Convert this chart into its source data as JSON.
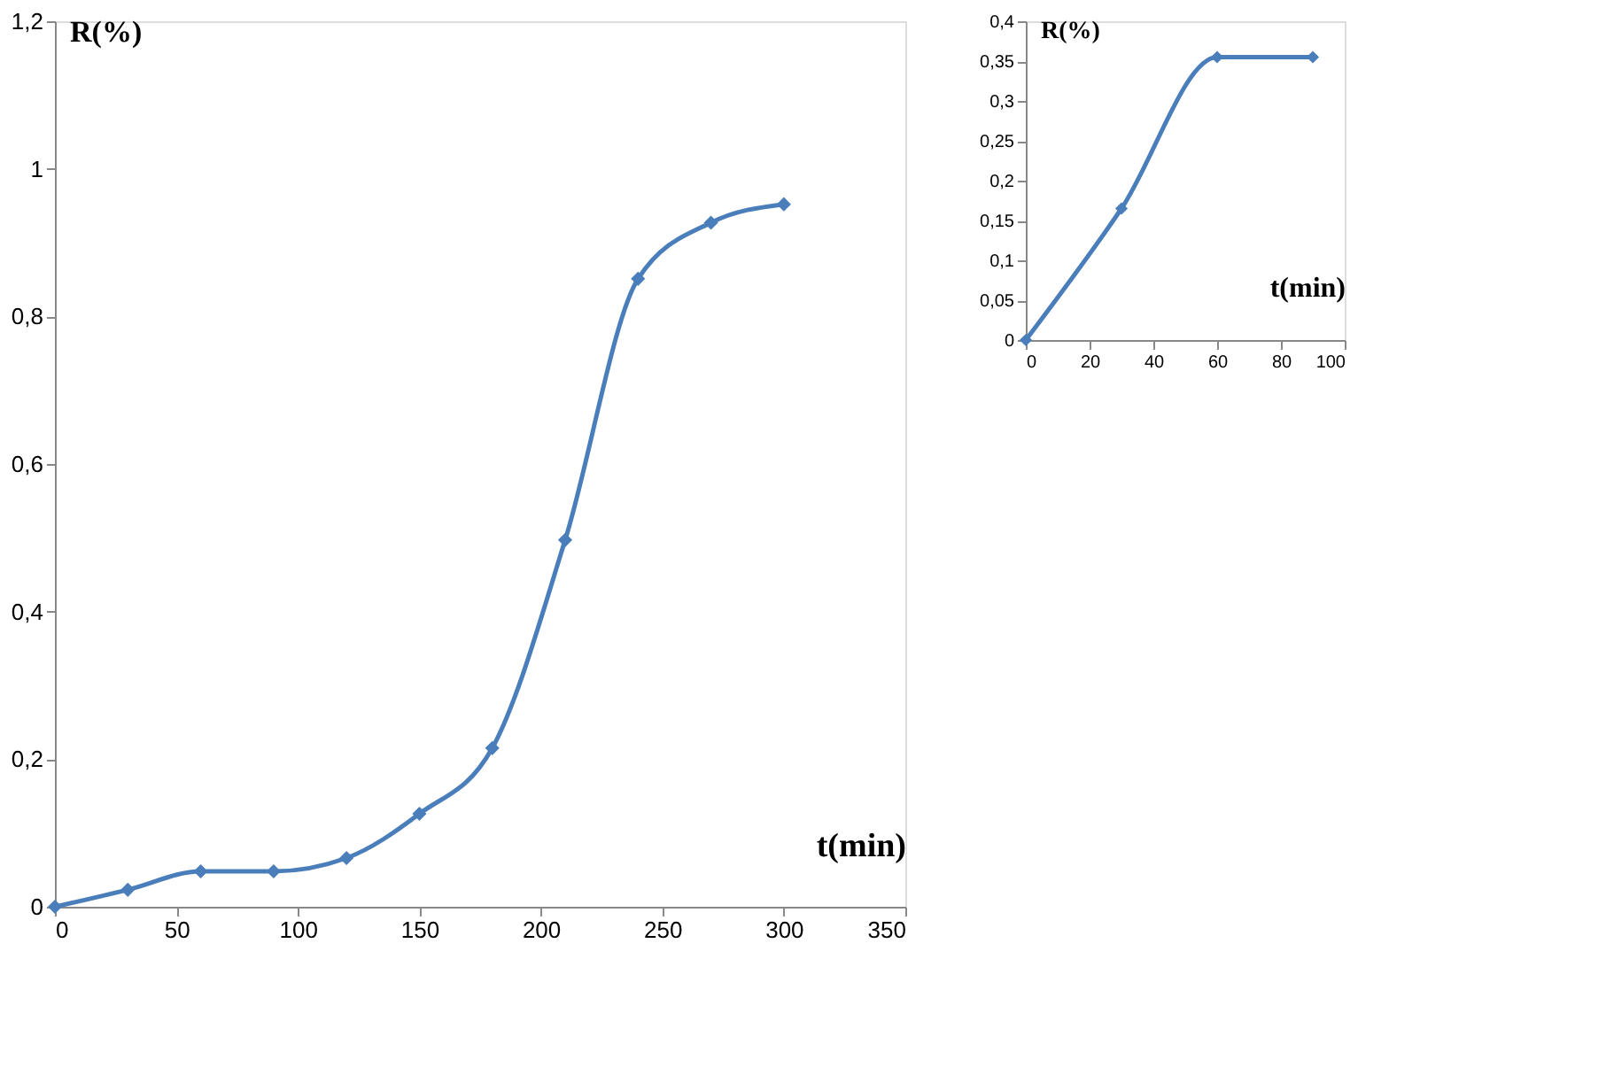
{
  "chart_data": [
    {
      "type": "line",
      "xlabel": "t(min)",
      "ylabel": "R(%)",
      "x": [
        0,
        30,
        60,
        90,
        120,
        150,
        180,
        210,
        240,
        270,
        300
      ],
      "series": [
        {
          "color": "#4a7ebb",
          "values": [
            0,
            0.023,
            0.048,
            0.048,
            0.066,
            0.126,
            0.215,
            0.497,
            0.851,
            0.927,
            0.952
          ]
        }
      ],
      "xlim": [
        0,
        350
      ],
      "xticks": [
        0,
        50,
        100,
        150,
        200,
        250,
        300,
        350
      ],
      "ylim": [
        0,
        1.2
      ],
      "yticks": [
        0,
        {
          "value": 0.2,
          "label": "0,2"
        },
        {
          "value": 0.4,
          "label": "0,4"
        },
        {
          "value": 0.6,
          "label": "0,6"
        },
        {
          "value": 0.8,
          "label": "0,8"
        },
        1,
        {
          "value": 1.2,
          "label": "1,2"
        }
      ],
      "marker": "diamond",
      "line_style": "solid",
      "grid": false
    },
    {
      "type": "line",
      "xlabel": "t(min)",
      "ylabel": "R(%)",
      "x": [
        0,
        30,
        60,
        90
      ],
      "series": [
        {
          "color": "#4a7ebb",
          "values": [
            0,
            0.165,
            0.355,
            0.355
          ]
        }
      ],
      "xlim": [
        0,
        100
      ],
      "xticks": [
        0,
        20,
        40,
        60,
        80,
        100
      ],
      "ylim": [
        0,
        0.4
      ],
      "yticks": [
        0,
        {
          "value": 0.05,
          "label": "0,05"
        },
        {
          "value": 0.1,
          "label": "0,1"
        },
        {
          "value": 0.15,
          "label": "0,15"
        },
        {
          "value": 0.2,
          "label": "0,2"
        },
        {
          "value": 0.25,
          "label": "0,25"
        },
        {
          "value": 0.3,
          "label": "0,3"
        },
        {
          "value": 0.35,
          "label": "0,35"
        },
        {
          "value": 0.4,
          "label": "0,4"
        }
      ],
      "marker": "diamond",
      "line_style": "solid",
      "grid": false
    }
  ]
}
